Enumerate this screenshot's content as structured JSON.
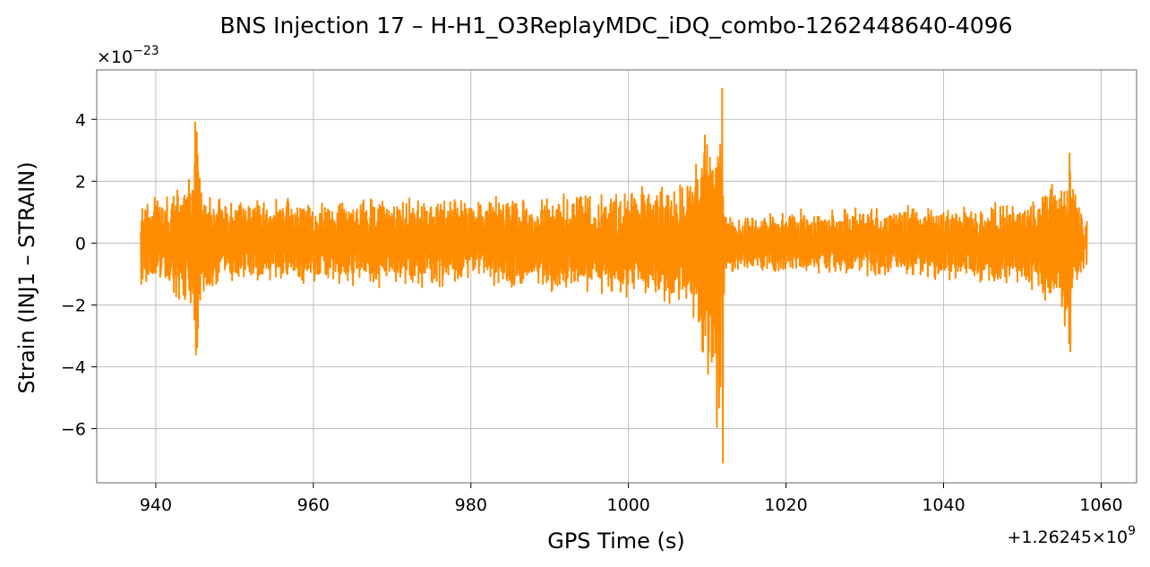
{
  "chart_data": {
    "type": "line",
    "title": "BNS Injection 17 – H-H1_O3ReplayMDC_iDQ_combo-1262448640-4096",
    "xlabel": "GPS Time (s)",
    "ylabel": "Strain (INJ1 – STRAIN)",
    "x_offset_label": "+1.26245×10",
    "x_offset_exp": "9",
    "y_scale_label": "×10",
    "y_scale_exp": "−23",
    "xlim": [
      932.5,
      1064.5
    ],
    "ylim": [
      -7.75,
      5.6
    ],
    "xticks": [
      940,
      960,
      980,
      1000,
      1020,
      1040,
      1060
    ],
    "xtick_labels": [
      "940",
      "960",
      "980",
      "1000",
      "1020",
      "1040",
      "1060"
    ],
    "yticks": [
      -6,
      -4,
      -2,
      0,
      2,
      4
    ],
    "ytick_labels": [
      "−6",
      "−4",
      "−2",
      "0",
      "2",
      "4"
    ],
    "grid": true,
    "series": [
      {
        "color": "#ff8c00",
        "x_range": [
          938.1,
          1058.2
        ],
        "amplitude_envelope": {
          "x": [
            938.1,
            942,
            944.5,
            945.3,
            946,
            950,
            960,
            980,
            1000,
            1008,
            1011.5,
            1012.2,
            1013,
            1030,
            1050,
            1054,
            1056,
            1056.6,
            1058.2
          ],
          "upper": [
            1.45,
            1.8,
            2.6,
            3.9,
            1.8,
            1.5,
            1.5,
            1.6,
            1.8,
            2.6,
            5.0,
            1.3,
            1.0,
            1.2,
            1.4,
            2.1,
            2.9,
            1.8,
            1.0
          ],
          "lower": [
            -1.6,
            -1.9,
            -2.4,
            -3.6,
            -1.7,
            -1.3,
            -1.4,
            -1.5,
            -1.8,
            -2.2,
            -7.1,
            -1.5,
            -1.0,
            -1.1,
            -1.4,
            -2.2,
            -3.5,
            -1.6,
            -0.8
          ]
        },
        "peaks": [
          {
            "x": 945.0,
            "value": 3.9
          },
          {
            "x": 945.1,
            "value": -3.6
          },
          {
            "x": 1011.9,
            "value": 5.0
          },
          {
            "x": 1012.0,
            "value": -7.1
          },
          {
            "x": 1056.0,
            "value": 2.9
          },
          {
            "x": 1056.1,
            "value": -3.5
          }
        ]
      }
    ]
  }
}
